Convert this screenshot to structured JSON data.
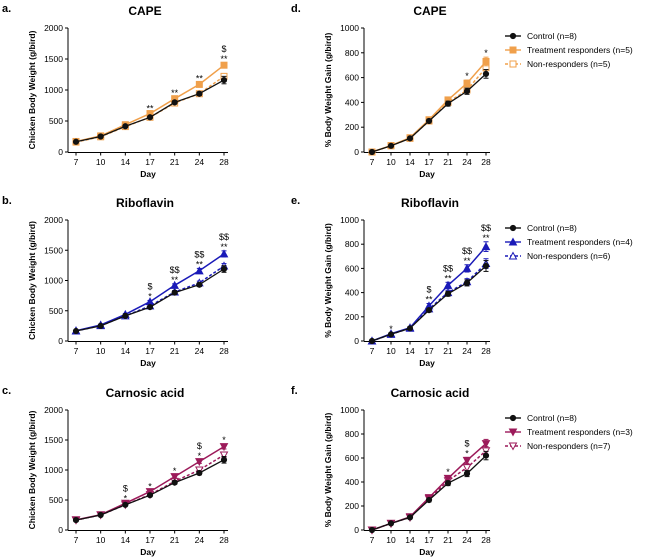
{
  "figure": {
    "colors": {
      "control": "#111111",
      "cape": "#f0a04b",
      "riboflavin": "#1a1ab8",
      "carnosic": "#9c1a5a"
    }
  },
  "chart_data": [
    {
      "id": "a",
      "letter": "a.",
      "title": "CAPE",
      "type": "line",
      "xlabel": "Day",
      "ylabel": "Chicken Body Weight (g/bird)",
      "categories": [
        "7",
        "10",
        "14",
        "17",
        "21",
        "24",
        "28"
      ],
      "ylim": [
        0,
        2000
      ],
      "yticks": [
        0,
        500,
        1000,
        1500,
        2000
      ],
      "series": [
        {
          "name": "Control",
          "values": [
            165,
            250,
            415,
            560,
            800,
            940,
            1160
          ],
          "err": [
            10,
            12,
            15,
            20,
            25,
            30,
            60
          ]
        },
        {
          "name": "Treatment responders",
          "values": [
            170,
            260,
            440,
            620,
            860,
            1090,
            1400
          ],
          "err": [
            10,
            12,
            15,
            20,
            25,
            30,
            35
          ]
        },
        {
          "name": "Non-responders",
          "values": [
            160,
            245,
            410,
            560,
            790,
            940,
            1220
          ],
          "err": [
            10,
            12,
            15,
            20,
            25,
            30,
            40
          ]
        }
      ],
      "annotations": [
        {
          "x": "17",
          "lines": [
            "**"
          ]
        },
        {
          "x": "21",
          "lines": [
            "**"
          ]
        },
        {
          "x": "24",
          "lines": [
            "**"
          ]
        },
        {
          "x": "28",
          "lines": [
            "$",
            "**"
          ]
        }
      ],
      "legend": []
    },
    {
      "id": "d",
      "letter": "d.",
      "title": "CAPE",
      "type": "line",
      "xlabel": "Day",
      "ylabel": "% Body Weight Gain (g/bird)",
      "categories": [
        "7",
        "10",
        "14",
        "17",
        "21",
        "24",
        "28"
      ],
      "ylim": [
        0,
        1000
      ],
      "yticks": [
        0,
        200,
        400,
        600,
        800,
        1000
      ],
      "series": [
        {
          "name": "Control",
          "values": [
            0,
            50,
            110,
            250,
            390,
            490,
            630
          ],
          "err": [
            4,
            6,
            10,
            15,
            20,
            25,
            35
          ]
        },
        {
          "name": "Treatment responders",
          "values": [
            0,
            52,
            115,
            260,
            420,
            555,
            730
          ],
          "err": [
            4,
            6,
            10,
            15,
            20,
            25,
            35
          ]
        },
        {
          "name": "Non-responders",
          "values": [
            0,
            50,
            110,
            250,
            400,
            500,
            680
          ],
          "err": [
            4,
            6,
            10,
            15,
            20,
            25,
            50
          ]
        }
      ],
      "annotations": [
        {
          "x": "24",
          "lines": [
            "*"
          ]
        },
        {
          "x": "28",
          "lines": [
            "*"
          ]
        }
      ],
      "legend": [
        "Control (n=8)",
        "Treatment responders (n=5)",
        "Non-responders (n=5)"
      ]
    },
    {
      "id": "b",
      "letter": "b.",
      "title": "Riboflavin",
      "type": "line",
      "xlabel": "Day",
      "ylabel": "Chicken Body Weight (g/bird)",
      "categories": [
        "7",
        "10",
        "14",
        "17",
        "21",
        "24",
        "28"
      ],
      "ylim": [
        0,
        2000
      ],
      "yticks": [
        0,
        500,
        1000,
        1500,
        2000
      ],
      "series": [
        {
          "name": "Control",
          "values": [
            165,
            250,
            415,
            560,
            800,
            930,
            1190
          ],
          "err": [
            10,
            12,
            15,
            20,
            25,
            30,
            55
          ]
        },
        {
          "name": "Treatment responders",
          "values": [
            170,
            265,
            440,
            650,
            920,
            1160,
            1440
          ],
          "err": [
            10,
            12,
            15,
            20,
            25,
            40,
            50
          ]
        },
        {
          "name": "Non-responders",
          "values": [
            165,
            255,
            415,
            580,
            810,
            960,
            1240
          ],
          "err": [
            10,
            12,
            15,
            20,
            25,
            30,
            40
          ]
        }
      ],
      "annotations": [
        {
          "x": "17",
          "lines": [
            "$",
            "*"
          ]
        },
        {
          "x": "21",
          "lines": [
            "$$",
            "**"
          ]
        },
        {
          "x": "24",
          "lines": [
            "$$",
            "**"
          ]
        },
        {
          "x": "28",
          "lines": [
            "$$",
            "**"
          ]
        }
      ],
      "legend": []
    },
    {
      "id": "e",
      "letter": "e.",
      "title": "Riboflavin",
      "type": "line",
      "xlabel": "Day",
      "ylabel": "% Body Weight Gain (g/bird)",
      "categories": [
        "7",
        "10",
        "14",
        "17",
        "21",
        "24",
        "28"
      ],
      "ylim": [
        0,
        1000
      ],
      "yticks": [
        0,
        200,
        400,
        600,
        800,
        1000
      ],
      "series": [
        {
          "name": "Control",
          "values": [
            0,
            55,
            105,
            255,
            390,
            480,
            620
          ],
          "err": [
            4,
            6,
            10,
            15,
            20,
            25,
            45
          ]
        },
        {
          "name": "Treatment responders",
          "values": [
            0,
            60,
            110,
            290,
            460,
            600,
            780
          ],
          "err": [
            4,
            6,
            10,
            20,
            25,
            30,
            40
          ]
        },
        {
          "name": "Non-responders",
          "values": [
            0,
            55,
            105,
            265,
            400,
            490,
            640
          ],
          "err": [
            4,
            6,
            10,
            15,
            20,
            25,
            40
          ]
        }
      ],
      "annotations": [
        {
          "x": "10",
          "lines": [
            "*"
          ]
        },
        {
          "x": "17",
          "lines": [
            "$",
            "**"
          ]
        },
        {
          "x": "21",
          "lines": [
            "$$",
            "**"
          ]
        },
        {
          "x": "24",
          "lines": [
            "$$",
            "**"
          ]
        },
        {
          "x": "28",
          "lines": [
            "$$",
            "**"
          ]
        }
      ],
      "legend": [
        "Control (n=8)",
        "Treatment responders (n=4)",
        "Non-responders (n=6)"
      ]
    },
    {
      "id": "c",
      "letter": "c.",
      "title": "Carnosic acid",
      "type": "line",
      "xlabel": "Day",
      "ylabel": "Chicken Body Weight (g/bird)",
      "categories": [
        "7",
        "10",
        "14",
        "17",
        "21",
        "24",
        "28"
      ],
      "ylim": [
        0,
        2000
      ],
      "yticks": [
        0,
        500,
        1000,
        1500,
        2000
      ],
      "series": [
        {
          "name": "Control",
          "values": [
            165,
            250,
            420,
            580,
            790,
            950,
            1170
          ],
          "err": [
            10,
            12,
            15,
            20,
            25,
            30,
            55
          ]
        },
        {
          "name": "Treatment responders",
          "values": [
            170,
            255,
            445,
            640,
            890,
            1140,
            1390
          ],
          "err": [
            10,
            12,
            15,
            20,
            25,
            30,
            40
          ]
        },
        {
          "name": "Non-responders",
          "values": [
            165,
            250,
            420,
            590,
            810,
            1000,
            1250
          ],
          "err": [
            10,
            12,
            15,
            20,
            25,
            30,
            40
          ]
        }
      ],
      "annotations": [
        {
          "x": "14",
          "lines": [
            "$",
            "*"
          ]
        },
        {
          "x": "17",
          "lines": [
            "*"
          ]
        },
        {
          "x": "21",
          "lines": [
            "*"
          ]
        },
        {
          "x": "24",
          "lines": [
            "$",
            "*"
          ]
        },
        {
          "x": "28",
          "lines": [
            "*"
          ]
        }
      ],
      "legend": []
    },
    {
      "id": "f",
      "letter": "f.",
      "title": "Carnosic acid",
      "type": "line",
      "xlabel": "Day",
      "ylabel": "% Body Weight Gain (g/bird)",
      "categories": [
        "7",
        "10",
        "14",
        "17",
        "21",
        "24",
        "28"
      ],
      "ylim": [
        0,
        1000
      ],
      "yticks": [
        0,
        200,
        400,
        600,
        800,
        1000
      ],
      "series": [
        {
          "name": "Control",
          "values": [
            0,
            55,
            105,
            250,
            390,
            470,
            620
          ],
          "err": [
            4,
            6,
            10,
            15,
            20,
            25,
            35
          ]
        },
        {
          "name": "Treatment responders",
          "values": [
            0,
            55,
            110,
            270,
            430,
            580,
            720
          ],
          "err": [
            4,
            6,
            10,
            15,
            20,
            25,
            35
          ]
        },
        {
          "name": "Non-responders",
          "values": [
            0,
            55,
            105,
            260,
            410,
            520,
            660
          ],
          "err": [
            4,
            6,
            10,
            15,
            20,
            25,
            35
          ]
        }
      ],
      "annotations": [
        {
          "x": "21",
          "lines": [
            "*"
          ]
        },
        {
          "x": "24",
          "lines": [
            "$",
            "*"
          ]
        }
      ],
      "legend": [
        "Control (n=8)",
        "Treatment responders (n=3)",
        "Non-responders (n=7)"
      ]
    }
  ]
}
